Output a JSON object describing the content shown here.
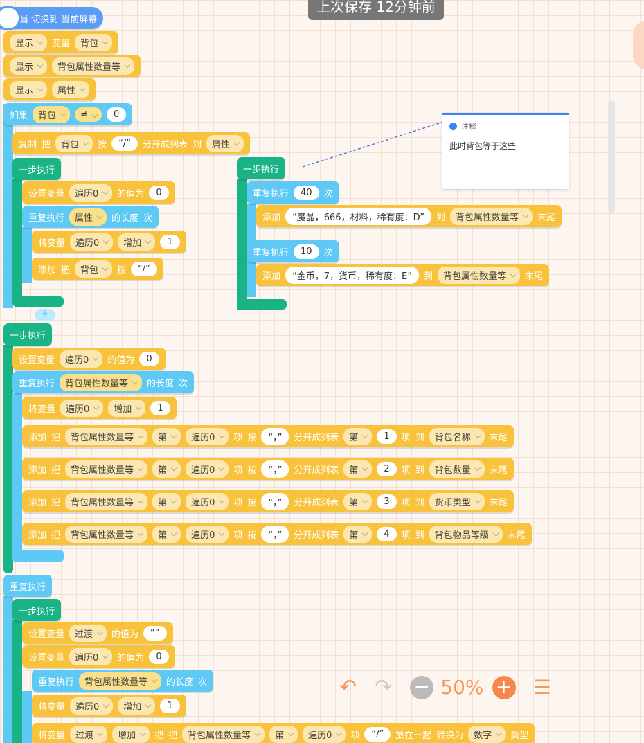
{
  "toast": "上次保存 12分钟前",
  "event": "当 切换到 当前屏幕",
  "comment": {
    "title": "注释",
    "text": "此时背包等于这些"
  },
  "zoom": "50%",
  "blocks": [
    [
      "显示",
      "变量",
      "背包"
    ],
    [
      "显示",
      "背包属性数量等"
    ],
    [
      "显示",
      "属性"
    ],
    [
      "如果",
      "背包",
      "≠",
      "0"
    ],
    [
      "复制",
      "把",
      "背包",
      "按",
      "“/”",
      "分开成列表",
      "到",
      "属性"
    ],
    [
      "一步执行"
    ],
    [
      "设置变量",
      "遍历0",
      "的值为",
      "0"
    ],
    [
      "重复执行",
      "属性",
      "的长度",
      "次"
    ],
    [
      "将变量",
      "遍历0",
      "增加",
      "1"
    ],
    [
      "添加",
      "把",
      "背包",
      "按",
      "“/”"
    ],
    [
      "一步执行"
    ],
    [
      "重复执行",
      "40",
      "次"
    ],
    [
      "添加",
      "“魔晶，666，材料，稀有度：D”",
      "到",
      "背包属性数量等",
      "末尾"
    ],
    [
      "重复执行",
      "10",
      "次"
    ],
    [
      "添加",
      "“金币，7，货币，稀有度：E”",
      "到",
      "背包属性数量等",
      "末尾"
    ],
    [
      "一步执行"
    ],
    [
      "设置变量",
      "遍历0",
      "的值为",
      "0"
    ],
    [
      "重复执行",
      "背包属性数量等",
      "的长度",
      "次"
    ],
    [
      "将变量",
      "遍历0",
      "增加",
      "1"
    ],
    [
      "添加",
      "把",
      "背包属性数量等",
      "第",
      "遍历0",
      "项",
      "按",
      "“，”",
      "分开成列表",
      "第",
      "1",
      "项",
      "到",
      "背包名称",
      "末尾"
    ],
    [
      "添加",
      "把",
      "背包属性数量等",
      "第",
      "遍历0",
      "项",
      "按",
      "“，”",
      "分开成列表",
      "第",
      "2",
      "项",
      "到",
      "背包数量",
      "末尾"
    ],
    [
      "添加",
      "把",
      "背包属性数量等",
      "第",
      "遍历0",
      "项",
      "按",
      "“，”",
      "分开成列表",
      "第",
      "3",
      "项",
      "到",
      "货币类型",
      "末尾"
    ],
    [
      "添加",
      "把",
      "背包属性数量等",
      "第",
      "遍历0",
      "项",
      "按",
      "“，”",
      "分开成列表",
      "第",
      "4",
      "项",
      "到",
      "背包物品等级",
      "末尾"
    ],
    [
      "重复执行"
    ],
    [
      "一步执行"
    ],
    [
      "设置变量",
      "过渡",
      "的值为",
      "“”"
    ],
    [
      "设置变量",
      "遍历0",
      "的值为",
      "0"
    ],
    [
      "重复执行",
      "背包属性数量等",
      "的长度",
      "次"
    ],
    [
      "将变量",
      "遍历0",
      "增加",
      "1"
    ],
    [
      "将变量",
      "过渡",
      "增加",
      "把",
      "把",
      "背包属性数量等",
      "第",
      "遍历0",
      "项",
      "“/”",
      "放在一起",
      "转换为",
      "数字",
      "类型"
    ]
  ]
}
